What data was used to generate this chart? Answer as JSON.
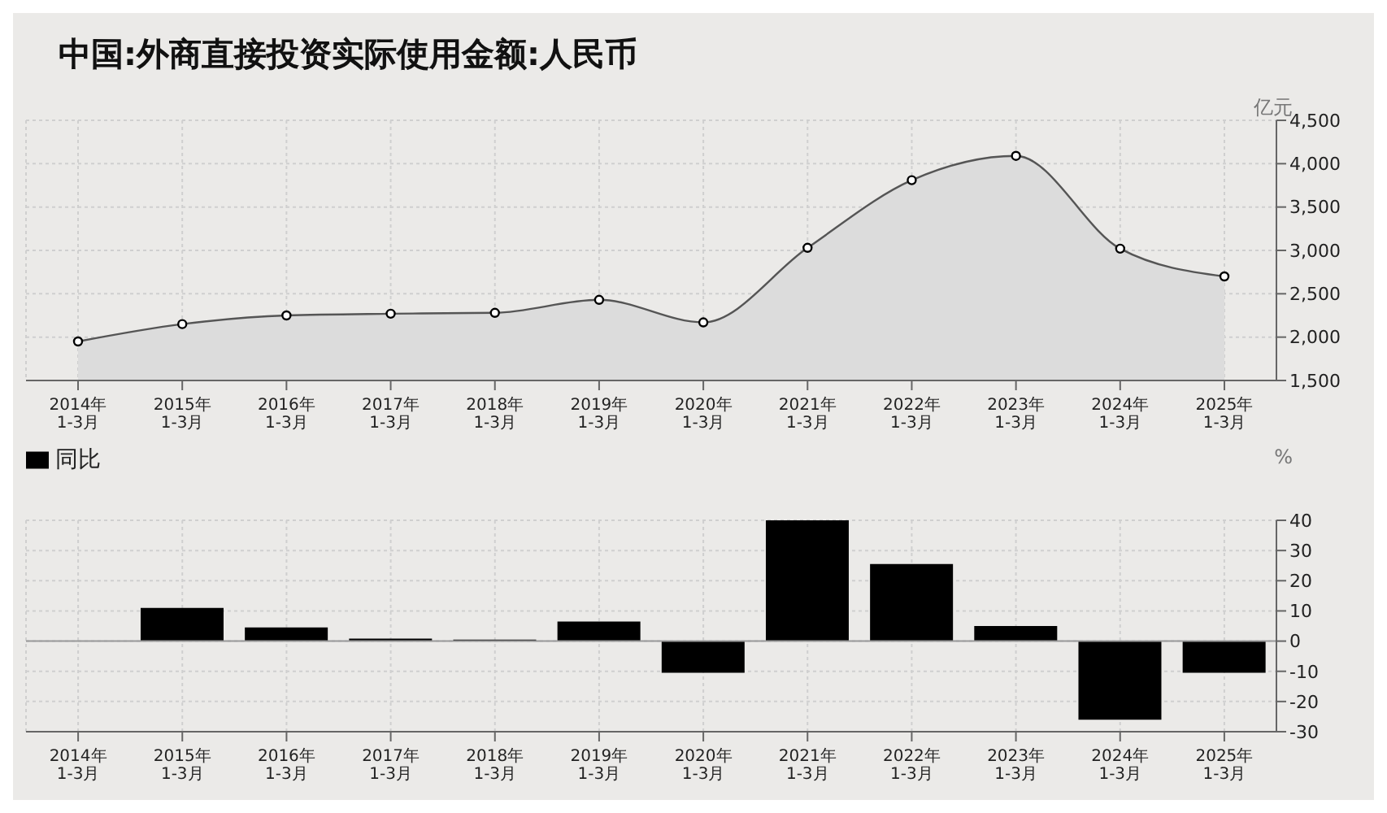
{
  "chart_data": [
    {
      "type": "area",
      "title": "中国:外商直接投资实际使用金额:人民币",
      "ylabel": "亿元",
      "categories": [
        "2014年\n1-3月",
        "2015年\n1-3月",
        "2016年\n1-3月",
        "2017年\n1-3月",
        "2018年\n1-3月",
        "2019年\n1-3月",
        "2020年\n1-3月",
        "2021年\n1-3月",
        "2022年\n1-3月",
        "2023年\n1-3月",
        "2024年\n1-3月",
        "2025年\n1-3月"
      ],
      "series": [
        {
          "color": "#555555",
          "values": [
            1950,
            2150,
            2250,
            2270,
            2280,
            2430,
            2170,
            3030,
            3810,
            4090,
            3020,
            2700
          ]
        }
      ],
      "ylim": [
        1500,
        4500
      ],
      "yticks": [
        {
          "value": 1500,
          "label": "1,500"
        },
        {
          "value": 2000,
          "label": "2,000"
        },
        {
          "value": 2500,
          "label": "2,500"
        },
        {
          "value": 3000,
          "label": "3,000"
        },
        {
          "value": 3500,
          "label": "3,500"
        },
        {
          "value": 4000,
          "label": "4,000"
        },
        {
          "value": 4500,
          "label": "4,500"
        }
      ],
      "grid": true,
      "marker": "circle"
    },
    {
      "type": "bar",
      "ylabel": "%",
      "categories": [
        "2014年\n1-3月",
        "2015年\n1-3月",
        "2016年\n1-3月",
        "2017年\n1-3月",
        "2018年\n1-3月",
        "2019年\n1-3月",
        "2020年\n1-3月",
        "2021年\n1-3月",
        "2022年\n1-3月",
        "2023年\n1-3月",
        "2024年\n1-3月",
        "2025年\n1-3月"
      ],
      "series": [
        {
          "name": "同比",
          "color": "#000000",
          "values": [
            null,
            11,
            4.5,
            0.8,
            0.5,
            6.5,
            -10.5,
            40,
            25.5,
            5,
            -26,
            -10.5
          ]
        }
      ],
      "ylim": [
        -30,
        40
      ],
      "yticks": [
        -30,
        -20,
        -10,
        0,
        10,
        20,
        30,
        40
      ],
      "grid": true,
      "legend": "top left"
    }
  ]
}
